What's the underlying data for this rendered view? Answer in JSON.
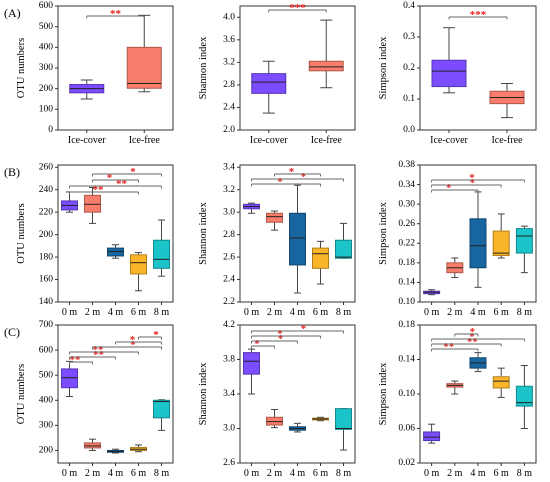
{
  "chart_data": [
    {
      "type": "box",
      "panel_label": "(A)",
      "ylabel": "OTU numbers",
      "ylim": [
        0,
        600
      ],
      "yticks": [
        "0",
        "100",
        "200",
        "300",
        "400",
        "500",
        "600"
      ],
      "categories": [
        "Ice-cover",
        "Ice-free"
      ],
      "boxes": [
        {
          "min": 150,
          "q1": 180,
          "median": 200,
          "q3": 220,
          "max": 242,
          "color": "#7b4dff"
        },
        {
          "min": 185,
          "q1": 202,
          "median": 225,
          "q3": 400,
          "max": 555,
          "color": "#f87d6b"
        }
      ],
      "significance": [
        {
          "pair": [
            0,
            1
          ],
          "label": "**"
        }
      ]
    },
    {
      "type": "box",
      "ylabel": "Shannon index",
      "ylim": [
        2.0,
        4.2
      ],
      "yticks": [
        "2.0",
        "2.4",
        "2.8",
        "3.2",
        "3.6",
        "4.0"
      ],
      "categories": [
        "Ice-cover",
        "Ice-free"
      ],
      "boxes": [
        {
          "min": 2.3,
          "q1": 2.65,
          "median": 2.85,
          "q3": 3.0,
          "max": 3.22,
          "color": "#7b4dff"
        },
        {
          "min": 2.75,
          "q1": 3.05,
          "median": 3.12,
          "q3": 3.22,
          "max": 3.95,
          "color": "#f87d6b"
        }
      ],
      "significance": [
        {
          "pair": [
            0,
            1
          ],
          "label": "***"
        }
      ]
    },
    {
      "type": "box",
      "ylabel": "Simpson index",
      "ylim": [
        0.0,
        0.4
      ],
      "yticks": [
        "0.0",
        "0.1",
        "0.2",
        "0.3",
        "0.4"
      ],
      "categories": [
        "Ice-cover",
        "Ice-free"
      ],
      "boxes": [
        {
          "min": 0.12,
          "q1": 0.14,
          "median": 0.19,
          "q3": 0.225,
          "max": 0.33,
          "color": "#7b4dff"
        },
        {
          "min": 0.04,
          "q1": 0.085,
          "median": 0.105,
          "q3": 0.125,
          "max": 0.15,
          "color": "#f87d6b"
        }
      ],
      "significance": [
        {
          "pair": [
            0,
            1
          ],
          "label": "***"
        }
      ]
    },
    {
      "type": "box",
      "panel_label": "(B)",
      "ylabel": "OTU numbers",
      "ylim": [
        140,
        262
      ],
      "yticks": [
        "140",
        "160",
        "180",
        "200",
        "220",
        "240",
        "260"
      ],
      "categories": [
        "0 m",
        "2 m",
        "4 m",
        "6 m",
        "8 m"
      ],
      "boxes": [
        {
          "min": 220,
          "q1": 222,
          "median": 226,
          "q3": 230,
          "max": 238,
          "color": "#7b4dff"
        },
        {
          "min": 210,
          "q1": 220,
          "median": 227,
          "q3": 235,
          "max": 242,
          "color": "#f87d6b"
        },
        {
          "min": 179,
          "q1": 181,
          "median": 185,
          "q3": 188,
          "max": 191,
          "color": "#1866a0"
        },
        {
          "min": 150,
          "q1": 165,
          "median": 175,
          "q3": 182,
          "max": 184,
          "color": "#fbb52a"
        },
        {
          "min": 163,
          "q1": 170,
          "median": 178,
          "q3": 195,
          "max": 213,
          "color": "#1bc4c9"
        }
      ],
      "significance": [
        {
          "pair": [
            0,
            3
          ],
          "label": "**"
        },
        {
          "pair": [
            0,
            4
          ],
          "label": "**"
        },
        {
          "pair": [
            1,
            3
          ],
          "label": "*"
        },
        {
          "pair": [
            1,
            4
          ],
          "label": "*"
        }
      ]
    },
    {
      "type": "box",
      "ylabel": "Shannon index",
      "ylim": [
        2.2,
        3.42
      ],
      "yticks": [
        "2.2",
        "2.4",
        "2.6",
        "2.8",
        "3.0",
        "3.2",
        "3.4"
      ],
      "categories": [
        "0 m",
        "2 m",
        "4 m",
        "6 m",
        "8 m"
      ],
      "boxes": [
        {
          "min": 2.99,
          "q1": 3.03,
          "median": 3.05,
          "q3": 3.07,
          "max": 3.08,
          "color": "#7b4dff"
        },
        {
          "min": 2.84,
          "q1": 2.91,
          "median": 2.96,
          "q3": 2.99,
          "max": 3.01,
          "color": "#f87d6b"
        },
        {
          "min": 2.28,
          "q1": 2.53,
          "median": 2.77,
          "q3": 2.99,
          "max": 3.24,
          "color": "#1866a0"
        },
        {
          "min": 2.36,
          "q1": 2.5,
          "median": 2.63,
          "q3": 2.68,
          "max": 2.74,
          "color": "#fbb52a"
        },
        {
          "min": 2.59,
          "q1": 2.59,
          "median": 2.6,
          "q3": 2.75,
          "max": 2.9,
          "color": "#1bc4c9"
        }
      ],
      "significance": [
        {
          "pair": [
            0,
            3
          ],
          "label": "*"
        },
        {
          "pair": [
            0,
            4
          ],
          "label": "*"
        },
        {
          "pair": [
            1,
            3
          ],
          "label": "*"
        }
      ]
    },
    {
      "type": "box",
      "ylabel": "Simpson index",
      "ylim": [
        0.1,
        0.38
      ],
      "yticks": [
        "0.10",
        "0.14",
        "0.18",
        "0.22",
        "0.26",
        "0.30",
        "0.34",
        "0.38"
      ],
      "categories": [
        "0 m",
        "2 m",
        "4 m",
        "6 m",
        "8 m"
      ],
      "boxes": [
        {
          "min": 0.115,
          "q1": 0.117,
          "median": 0.12,
          "q3": 0.122,
          "max": 0.125,
          "color": "#7b4dff"
        },
        {
          "min": 0.15,
          "q1": 0.16,
          "median": 0.17,
          "q3": 0.18,
          "max": 0.19,
          "color": "#f87d6b"
        },
        {
          "min": 0.13,
          "q1": 0.17,
          "median": 0.215,
          "q3": 0.27,
          "max": 0.325,
          "color": "#1866a0"
        },
        {
          "min": 0.19,
          "q1": 0.195,
          "median": 0.2,
          "q3": 0.245,
          "max": 0.28,
          "color": "#fbb52a"
        },
        {
          "min": 0.16,
          "q1": 0.2,
          "median": 0.235,
          "q3": 0.25,
          "max": 0.255,
          "color": "#1bc4c9"
        }
      ],
      "significance": [
        {
          "pair": [
            0,
            2
          ],
          "label": "*"
        },
        {
          "pair": [
            0,
            3
          ],
          "label": "*"
        },
        {
          "pair": [
            0,
            4
          ],
          "label": "*"
        }
      ]
    },
    {
      "type": "box",
      "panel_label": "(C)",
      "ylabel": "OTU numbers",
      "ylim": [
        150,
        700
      ],
      "yticks": [
        "200",
        "300",
        "400",
        "500",
        "600",
        "700"
      ],
      "categories": [
        "0 m",
        "2 m",
        "4 m",
        "6 m",
        "8 m"
      ],
      "boxes": [
        {
          "min": 415,
          "q1": 450,
          "median": 490,
          "q3": 525,
          "max": 555,
          "color": "#7b4dff"
        },
        {
          "min": 200,
          "q1": 210,
          "median": 218,
          "q3": 230,
          "max": 245,
          "color": "#f87d6b"
        },
        {
          "min": 190,
          "q1": 193,
          "median": 196,
          "q3": 200,
          "max": 205,
          "color": "#1866a0"
        },
        {
          "min": 195,
          "q1": 200,
          "median": 205,
          "q3": 212,
          "max": 222,
          "color": "#fbb52a"
        },
        {
          "min": 280,
          "q1": 330,
          "median": 395,
          "q3": 400,
          "max": 402,
          "color": "#1bc4c9"
        }
      ],
      "significance": [
        {
          "pair": [
            0,
            1
          ],
          "label": "**"
        },
        {
          "pair": [
            0,
            2
          ],
          "label": "**"
        },
        {
          "pair": [
            0,
            3
          ],
          "label": "**"
        },
        {
          "pair": [
            1,
            4
          ],
          "label": "*"
        },
        {
          "pair": [
            2,
            4
          ],
          "label": "*"
        },
        {
          "pair": [
            3,
            4
          ],
          "label": "*"
        }
      ]
    },
    {
      "type": "box",
      "ylabel": "Shannon index",
      "ylim": [
        2.6,
        4.2
      ],
      "yticks": [
        "2.6",
        "3.0",
        "3.4",
        "3.8",
        "4.2"
      ],
      "categories": [
        "0 m",
        "2 m",
        "4 m",
        "6 m",
        "8 m"
      ],
      "boxes": [
        {
          "min": 3.4,
          "q1": 3.63,
          "median": 3.78,
          "q3": 3.88,
          "max": 3.92,
          "color": "#7b4dff"
        },
        {
          "min": 3.01,
          "q1": 3.04,
          "median": 3.08,
          "q3": 3.13,
          "max": 3.22,
          "color": "#f87d6b"
        },
        {
          "min": 2.96,
          "q1": 2.98,
          "median": 3.0,
          "q3": 3.02,
          "max": 3.06,
          "color": "#1866a0"
        },
        {
          "min": 3.09,
          "q1": 3.1,
          "median": 3.11,
          "q3": 3.12,
          "max": 3.13,
          "color": "#fbb52a"
        },
        {
          "min": 2.75,
          "q1": 2.99,
          "median": 3.0,
          "q3": 3.23,
          "max": 3.23,
          "color": "#1bc4c9"
        }
      ],
      "significance": [
        {
          "pair": [
            0,
            1
          ],
          "label": "*"
        },
        {
          "pair": [
            0,
            2
          ],
          "label": "*"
        },
        {
          "pair": [
            0,
            3
          ],
          "label": "*"
        },
        {
          "pair": [
            0,
            4
          ],
          "label": "*"
        }
      ]
    },
    {
      "type": "box",
      "ylabel": "Simpson index",
      "ylim": [
        0.02,
        0.18
      ],
      "yticks": [
        "0.02",
        "0.06",
        "0.10",
        "0.14",
        "0.18"
      ],
      "categories": [
        "0 m",
        "2 m",
        "4 m",
        "6 m",
        "8 m"
      ],
      "boxes": [
        {
          "min": 0.043,
          "q1": 0.046,
          "median": 0.05,
          "q3": 0.056,
          "max": 0.065,
          "color": "#7b4dff"
        },
        {
          "min": 0.1,
          "q1": 0.108,
          "median": 0.11,
          "q3": 0.112,
          "max": 0.115,
          "color": "#f87d6b"
        },
        {
          "min": 0.126,
          "q1": 0.13,
          "median": 0.136,
          "q3": 0.142,
          "max": 0.148,
          "color": "#1866a0"
        },
        {
          "min": 0.096,
          "q1": 0.107,
          "median": 0.115,
          "q3": 0.12,
          "max": 0.13,
          "color": "#fbb52a"
        },
        {
          "min": 0.06,
          "q1": 0.086,
          "median": 0.09,
          "q3": 0.109,
          "max": 0.133,
          "color": "#1bc4c9"
        }
      ],
      "significance": [
        {
          "pair": [
            0,
            2
          ],
          "label": "**"
        },
        {
          "pair": [
            0,
            3
          ],
          "label": "**"
        },
        {
          "pair": [
            0,
            4
          ],
          "label": "*"
        },
        {
          "pair": [
            1,
            2
          ],
          "label": "*"
        }
      ]
    }
  ]
}
